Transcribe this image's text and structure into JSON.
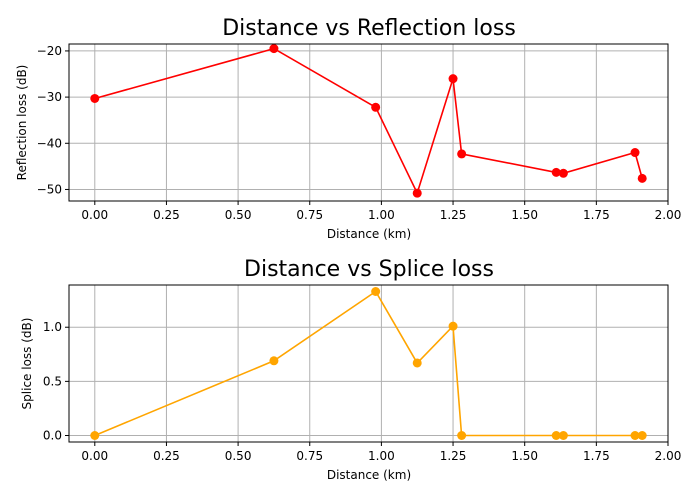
{
  "chart_data": [
    {
      "type": "line",
      "title": "Distance vs Reflection loss",
      "xlabel": "Distance (km)",
      "ylabel": "Reflection loss (dB)",
      "xlim": [
        -0.09,
        2.0
      ],
      "ylim": [
        -52.5,
        -18.5
      ],
      "xticks": [
        0.0,
        0.25,
        0.5,
        0.75,
        1.0,
        1.25,
        1.5,
        1.75,
        2.0
      ],
      "xtick_labels": [
        "0.00",
        "0.25",
        "0.50",
        "0.75",
        "1.00",
        "1.25",
        "1.50",
        "1.75",
        "2.00"
      ],
      "yticks": [
        -50,
        -40,
        -30,
        -20
      ],
      "ytick_labels": [
        "−50",
        "−40",
        "−30",
        "−20"
      ],
      "grid": true,
      "color": "#ff0000",
      "x": [
        0.0,
        0.625,
        0.98,
        1.125,
        1.25,
        1.28,
        1.61,
        1.635,
        1.885,
        1.91
      ],
      "y": [
        -30.3,
        -19.5,
        -32.2,
        -50.8,
        -26.0,
        -42.3,
        -46.3,
        -46.5,
        -42.0,
        -47.6
      ]
    },
    {
      "type": "line",
      "title": "Distance vs Splice loss",
      "xlabel": "Distance (km)",
      "ylabel": "Splice loss (dB)",
      "xlim": [
        -0.09,
        2.0
      ],
      "ylim": [
        -0.06,
        1.39
      ],
      "xticks": [
        0.0,
        0.25,
        0.5,
        0.75,
        1.0,
        1.25,
        1.5,
        1.75,
        2.0
      ],
      "xtick_labels": [
        "0.00",
        "0.25",
        "0.50",
        "0.75",
        "1.00",
        "1.25",
        "1.50",
        "1.75",
        "2.00"
      ],
      "yticks": [
        0.0,
        0.5,
        1.0
      ],
      "ytick_labels": [
        "0.0",
        "0.5",
        "1.0"
      ],
      "grid": true,
      "color": "#ffa500",
      "x": [
        0.0,
        0.625,
        0.98,
        1.125,
        1.25,
        1.28,
        1.61,
        1.635,
        1.885,
        1.91
      ],
      "y": [
        0.0,
        0.69,
        1.33,
        0.67,
        1.01,
        0.0,
        0.0,
        0.0,
        0.0,
        0.0
      ]
    }
  ]
}
